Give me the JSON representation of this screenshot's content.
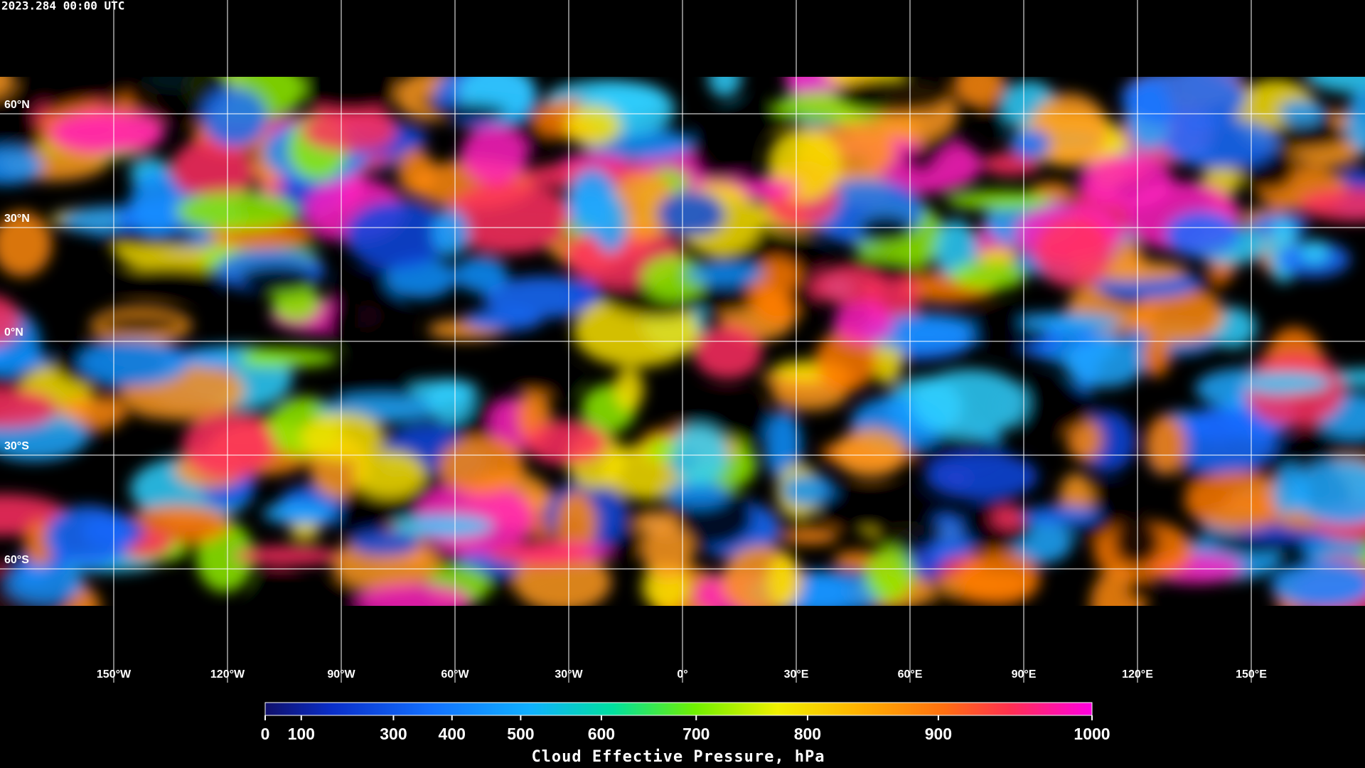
{
  "header": {
    "timestamp": "2023.284 00:00 UTC"
  },
  "map": {
    "xlim": [
      -180,
      180
    ],
    "ylim": [
      -90,
      90
    ],
    "lon_ticks": [
      {
        "value": -150,
        "label": "150°W"
      },
      {
        "value": -120,
        "label": "120°W"
      },
      {
        "value": -90,
        "label": "90°W"
      },
      {
        "value": -60,
        "label": "60°W"
      },
      {
        "value": -30,
        "label": "30°W"
      },
      {
        "value": 0,
        "label": "0°"
      },
      {
        "value": 30,
        "label": "30°E"
      },
      {
        "value": 60,
        "label": "60°E"
      },
      {
        "value": 90,
        "label": "90°E"
      },
      {
        "value": 120,
        "label": "120°E"
      },
      {
        "value": 150,
        "label": "150°E"
      }
    ],
    "lat_ticks": [
      {
        "value": 60,
        "label": "60°N"
      },
      {
        "value": 30,
        "label": "30°N"
      },
      {
        "value": 0,
        "label": "0°N"
      },
      {
        "value": -30,
        "label": "30°S"
      },
      {
        "value": -60,
        "label": "60°S"
      }
    ]
  },
  "colorbar": {
    "title": "Cloud Effective Pressure, hPa",
    "lim": [
      0,
      1000
    ],
    "scale": "exponential",
    "ticks": [
      0,
      100,
      300,
      400,
      500,
      600,
      700,
      800,
      900,
      1000
    ]
  }
}
